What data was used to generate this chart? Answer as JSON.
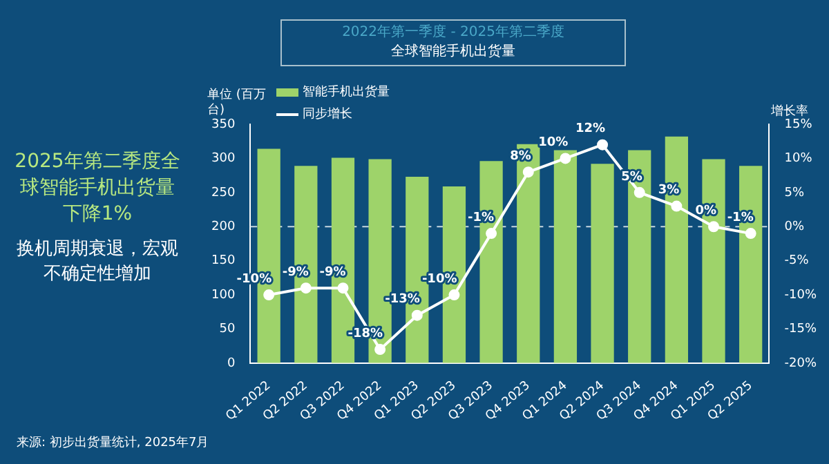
{
  "chart_data": {
    "type": "bar",
    "title": "全球智能手机出货量",
    "subtitle": "2022年第一季度 - 2025年第二季度",
    "ylabel": "单位 (百万台)",
    "y2label": "增长率",
    "categories": [
      "Q1 2022",
      "Q2 2022",
      "Q3 2022",
      "Q4 2022",
      "Q1 2023",
      "Q2 2023",
      "Q3 2023",
      "Q4 2023",
      "Q1 2024",
      "Q2 2024",
      "Q3 2024",
      "Q4 2024",
      "Q1 2025",
      "Q2 2025"
    ],
    "series": [
      {
        "name": "智能手机出货量",
        "color": "#9ed36a",
        "values": [
          314,
          289,
          301,
          299,
          273,
          259,
          296,
          321,
          312,
          292,
          312,
          332,
          299,
          289
        ]
      },
      {
        "name": "同步增长",
        "type": "line",
        "axis": "y2",
        "color": "#ffffff",
        "values": [
          -10,
          -9,
          -9,
          -18,
          -13,
          -10,
          -1,
          8,
          10,
          12,
          5,
          3,
          0,
          -1
        ],
        "value_labels": [
          "-10%",
          "-9%",
          "-9%",
          "-18%",
          "-13%",
          "-10%",
          "-1%",
          "8%",
          "10%",
          "12%",
          "5%",
          "3%",
          "0%",
          "-1%"
        ]
      }
    ],
    "ylim": [
      0,
      350
    ],
    "yticks": [
      0,
      50,
      100,
      150,
      200,
      250,
      300,
      350
    ],
    "y2lim": [
      -20,
      15
    ],
    "y2ticks": [
      {
        "value": -20,
        "label": "-20%"
      },
      {
        "value": -15,
        "label": "-15%"
      },
      {
        "value": -10,
        "label": "-10%"
      },
      {
        "value": -5,
        "label": "-5%"
      },
      {
        "value": 0,
        "label": "0%"
      },
      {
        "value": 5,
        "label": "5%"
      },
      {
        "value": 10,
        "label": "10%"
      },
      {
        "value": 15,
        "label": "15%"
      }
    ],
    "ref_lines": [
      {
        "axis": "y2",
        "value": 0,
        "color": "#c8d8e0",
        "line_style": "dashed"
      }
    ],
    "marker": "circle",
    "legend": "top",
    "grid": false,
    "annotations": [
      "2025年第二季度全球智能手机出货量下降1%",
      "换机周期衰退，宏观不确定性增加",
      "来源: 初步出货量统计, 2025年7月"
    ]
  }
}
